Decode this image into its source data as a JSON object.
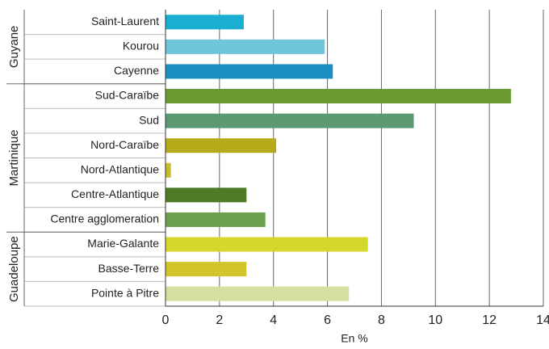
{
  "chart_data": {
    "type": "bar",
    "orientation": "horizontal",
    "groups": [
      {
        "name": "Guyane",
        "categories": [
          "Saint-Laurent",
          "Kourou",
          "Cayenne"
        ],
        "values": [
          2.9,
          5.9,
          6.2
        ],
        "colors": [
          "#1aafd0",
          "#6ec6dd",
          "#1a8fc0"
        ]
      },
      {
        "name": "Martinique",
        "categories": [
          "Sud-Caraïbe",
          "Sud",
          "Nord-Caraïbe",
          "Nord-Atlantique",
          "Centre-Atlantique",
          "Centre agglomeration"
        ],
        "values": [
          12.8,
          9.2,
          4.1,
          0.2,
          3.0,
          3.7
        ],
        "colors": [
          "#6a9a2f",
          "#5b9a73",
          "#b5ab1a",
          "#c6bd2a",
          "#4f7a28",
          "#6aa04e"
        ]
      },
      {
        "name": "Guadeloupe",
        "categories": [
          "Marie-Galante",
          "Basse-Terre",
          "Pointe à Pitre"
        ],
        "values": [
          7.5,
          3.0,
          6.8
        ],
        "colors": [
          "#d4d82a",
          "#d2c42a",
          "#d4e0a0"
        ]
      }
    ],
    "xlabel": "En %",
    "xlim": [
      0,
      14
    ],
    "xticks": [
      0,
      2,
      4,
      6,
      8,
      10,
      12,
      14
    ],
    "grid": true
  }
}
